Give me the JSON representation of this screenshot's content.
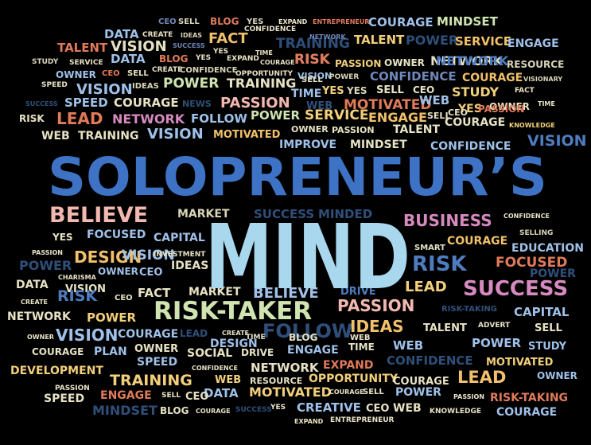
{
  "title": "SOLOPRENEUR’S",
  "subtitle": "MIND",
  "colors": {
    "background": "#000000",
    "title": "#3d72c4",
    "subtitle": "#a9d8ee"
  },
  "words": [
    {
      "text": "CEO",
      "color": "#6f88ba"
    },
    {
      "text": "SELL",
      "color": "#d9d4b8"
    },
    {
      "text": "BLOG",
      "color": "#e07a5a"
    },
    {
      "text": "YES",
      "color": "#d9d4b8"
    },
    {
      "text": "EXPAND",
      "color": "#e8e2c4"
    },
    {
      "text": "ENTREPRENEUR",
      "color": "#e07a5a"
    },
    {
      "text": "COURAGE",
      "color": "#9fc0e8"
    },
    {
      "text": "MINDSET",
      "color": "#cfe4b0"
    },
    {
      "text": "DATA",
      "color": "#9fc0e8"
    },
    {
      "text": "CREATE",
      "color": "#e8e2c4"
    },
    {
      "text": "IDEAS",
      "color": "#d9d4b8"
    },
    {
      "text": "FACT",
      "color": "#f0c06a"
    },
    {
      "text": "CONFIDENCE",
      "color": "#e8e2c4"
    },
    {
      "text": "TRAINING",
      "color": "#2f4f7a"
    },
    {
      "text": "NETWORK",
      "color": "#6f88ba"
    },
    {
      "text": "TALENT",
      "color": "#f2cf7a"
    },
    {
      "text": "POWER",
      "color": "#2f4f7a"
    },
    {
      "text": "SERVICE",
      "color": "#f0c06a"
    },
    {
      "text": "ENGAGE",
      "color": "#9fc0e8"
    },
    {
      "text": "TALENT",
      "color": "#e07a5a"
    },
    {
      "text": "VISION",
      "color": "#e8e2c4"
    },
    {
      "text": "SUCCESS",
      "color": "#6f88ba"
    },
    {
      "text": "RISK",
      "color": "#f2b8b0"
    },
    {
      "text": "TIME",
      "color": "#e8e2c4"
    },
    {
      "text": "YES",
      "color": "#e8e2c4"
    },
    {
      "text": "NETWORK",
      "color": "#e8e2c4"
    },
    {
      "text": "STUDY",
      "color": "#d9d4b8"
    },
    {
      "text": "SERVICE",
      "color": "#e8e2c4"
    },
    {
      "text": "DATA",
      "color": "#9fc0e8"
    },
    {
      "text": "BLOG",
      "color": "#e07a5a"
    },
    {
      "text": "YES",
      "color": "#e8e2c4"
    },
    {
      "text": "EXPAND",
      "color": "#e8e2c4"
    },
    {
      "text": "COURAGE",
      "color": "#e8e2c4"
    },
    {
      "text": "RISK",
      "color": "#e07a5a"
    },
    {
      "text": "PASSION",
      "color": "#f2cf7a"
    },
    {
      "text": "OWNER",
      "color": "#e8e2c4"
    },
    {
      "text": "NETWORK",
      "color": "#4f7cc0"
    },
    {
      "text": "RESOURCE",
      "color": "#d9d4b8"
    },
    {
      "text": "OWNER",
      "color": "#9fc0e8"
    },
    {
      "text": "CEO",
      "color": "#e07a5a"
    },
    {
      "text": "SELL",
      "color": "#e8e2c4"
    },
    {
      "text": "CREATE",
      "color": "#e8e2c4"
    },
    {
      "text": "CONFIDENCE",
      "color": "#d9d4b8"
    },
    {
      "text": "OPPORTUNITY",
      "color": "#e8e2c4"
    },
    {
      "text": "VISION",
      "color": "#9fc0e8"
    },
    {
      "text": "CONFIDENCE",
      "color": "#6f88ba"
    },
    {
      "text": "COURAGE",
      "color": "#f0c06a"
    },
    {
      "text": "VISIONARY",
      "color": "#d9d4b8"
    },
    {
      "text": "SPEED",
      "color": "#e8e2c4"
    },
    {
      "text": "VISION",
      "color": "#9fc0e8"
    },
    {
      "text": "IDEAS",
      "color": "#d9d4b8"
    },
    {
      "text": "POWER",
      "color": "#cfe4b0"
    },
    {
      "text": "TRAINING",
      "color": "#e8e2c4"
    },
    {
      "text": "SELL",
      "color": "#e8e2c4"
    },
    {
      "text": "POWER",
      "color": "#d9d4b8"
    },
    {
      "text": "YES",
      "color": "#d9d4b8"
    },
    {
      "text": "SELL",
      "color": "#e8e2c4"
    },
    {
      "text": "CEO",
      "color": "#e8e2c4"
    },
    {
      "text": "STUDY",
      "color": "#f2cf7a"
    },
    {
      "text": "FACT",
      "color": "#e8e2c4"
    },
    {
      "text": "SUCCESS",
      "color": "#2f4f7a"
    },
    {
      "text": "SPEED",
      "color": "#9fc0e8"
    },
    {
      "text": "COURAGE",
      "color": "#e8e2c4"
    },
    {
      "text": "NEWS",
      "color": "#2f4f7a"
    },
    {
      "text": "PASSION",
      "color": "#f2b8b0"
    },
    {
      "text": "TIME",
      "color": "#9fc0e8"
    },
    {
      "text": "YES",
      "color": "#f2cf7a"
    },
    {
      "text": "WEB",
      "color": "#2f4f7a"
    },
    {
      "text": "MOTIVATED",
      "color": "#e07a5a"
    },
    {
      "text": "WEB",
      "color": "#9fc0e8"
    },
    {
      "text": "YES",
      "color": "#f2cf7a"
    },
    {
      "text": "OWNER",
      "color": "#e8e2c4"
    },
    {
      "text": "TIME",
      "color": "#e8e2c4"
    },
    {
      "text": "RISK",
      "color": "#e8e2c4"
    },
    {
      "text": "LEAD",
      "color": "#e07a5a"
    },
    {
      "text": "NETWORK",
      "color": "#d68ac0"
    },
    {
      "text": "FOLLOW",
      "color": "#9fc0e8"
    },
    {
      "text": "POWER",
      "color": "#cfe4b0"
    },
    {
      "text": "SERVICE",
      "color": "#f2cf7a"
    },
    {
      "text": "ENGAGE",
      "color": "#f0c06a"
    },
    {
      "text": "SELL",
      "color": "#e8e2c4"
    },
    {
      "text": "CEO",
      "color": "#e8e2c4"
    },
    {
      "text": "COURAGE",
      "color": "#e8e2c4"
    },
    {
      "text": "PASSION",
      "color": "#e07a5a"
    },
    {
      "text": "WEB",
      "color": "#e8e2c4"
    },
    {
      "text": "TRAINING",
      "color": "#e8e2c4"
    },
    {
      "text": "VISION",
      "color": "#9fc0e8"
    },
    {
      "text": "MOTIVATED",
      "color": "#f0c06a"
    },
    {
      "text": "OWNER",
      "color": "#e8e2c4"
    },
    {
      "text": "PASSION",
      "color": "#e8e2c4"
    },
    {
      "text": "TALENT",
      "color": "#e8e2c4"
    },
    {
      "text": "KNOWLEDGE",
      "color": "#f2cf7a"
    },
    {
      "text": "VISION",
      "color": "#4f7cc0"
    },
    {
      "text": "IMPROVE",
      "color": "#9fc0e8"
    },
    {
      "text": "MINDSET",
      "color": "#e8e2c4"
    },
    {
      "text": "CONFIDENCE",
      "color": "#9fc0e8"
    },
    {
      "text": "BELIEVE",
      "color": "#f2b8b0"
    },
    {
      "text": "MARKET",
      "color": "#d9d4b8"
    },
    {
      "text": "SUCCESS",
      "color": "#2f4f7a"
    },
    {
      "text": "MINDED",
      "color": "#2f4f7a"
    },
    {
      "text": "BUSINESS",
      "color": "#d68ac0"
    },
    {
      "text": "CONFIDENCE",
      "color": "#e8e2c4"
    },
    {
      "text": "YES",
      "color": "#e8e2c4"
    },
    {
      "text": "FOCUSED",
      "color": "#9fc0e8"
    },
    {
      "text": "CAPITAL",
      "color": "#9fc0e8"
    },
    {
      "text": "COURAGE",
      "color": "#f0c06a"
    },
    {
      "text": "SELLING",
      "color": "#d9d4b8"
    },
    {
      "text": "PASSION",
      "color": "#e8e2c4"
    },
    {
      "text": "DESIGN",
      "color": "#f0c06a"
    },
    {
      "text": "VISION",
      "color": "#9fc0e8"
    },
    {
      "text": "INVESTMENT",
      "color": "#e8e2c4"
    },
    {
      "text": "SMART",
      "color": "#e8e2c4"
    },
    {
      "text": "EDUCATION",
      "color": "#9fc0e8"
    },
    {
      "text": "POWER",
      "color": "#2f4f7a"
    },
    {
      "text": "CHARISMA",
      "color": "#e8e2c4"
    },
    {
      "text": "OWNER",
      "color": "#9fc0e8"
    },
    {
      "text": "CEO",
      "color": "#9fc0e8"
    },
    {
      "text": "IDEAS",
      "color": "#e8e2c4"
    },
    {
      "text": "RISK",
      "color": "#4f7cc0"
    },
    {
      "text": "FOCUSED",
      "color": "#e07a5a"
    },
    {
      "text": "POWER",
      "color": "#2f4f7a"
    },
    {
      "text": "DATA",
      "color": "#e8e2c4"
    },
    {
      "text": "VISION",
      "color": "#e8e2c4"
    },
    {
      "text": "MARKET",
      "color": "#e8e2c4"
    },
    {
      "text": "BELIEVE",
      "color": "#9fc0e8"
    },
    {
      "text": "DRIVE",
      "color": "#4f7cc0"
    },
    {
      "text": "LEAD",
      "color": "#f2cf7a"
    },
    {
      "text": "SUCCESS",
      "color": "#d68ac0"
    },
    {
      "text": "RISK",
      "color": "#4f7cc0"
    },
    {
      "text": "CEO",
      "color": "#e8e2c4"
    },
    {
      "text": "FACT",
      "color": "#e8e2c4"
    },
    {
      "text": "CREATE",
      "color": "#e8e2c4"
    },
    {
      "text": "RISK-TAKER",
      "color": "#cfe4b0"
    },
    {
      "text": "PASSION",
      "color": "#f2b8b0"
    },
    {
      "text": "RISK-TAKING",
      "color": "#2f4f7a"
    },
    {
      "text": "CAPITAL",
      "color": "#9fc0e8"
    },
    {
      "text": "NETWORK",
      "color": "#e8e2c4"
    },
    {
      "text": "POWER",
      "color": "#f2cf7a"
    },
    {
      "text": "FOLLOW",
      "color": "#2f4f7a"
    },
    {
      "text": "IDEAS",
      "color": "#f0c06a"
    },
    {
      "text": "TALENT",
      "color": "#e8e2c4"
    },
    {
      "text": "ADVERT",
      "color": "#e8e2c4"
    },
    {
      "text": "SELL",
      "color": "#e8e2c4"
    },
    {
      "text": "OWNER",
      "color": "#e8e2c4"
    },
    {
      "text": "VISION",
      "color": "#9fc0e8"
    },
    {
      "text": "COURAGE",
      "color": "#9fc0e8"
    },
    {
      "text": "LEAD",
      "color": "#2f4f7a"
    },
    {
      "text": "CREATE",
      "color": "#e8e2c4"
    },
    {
      "text": "TIME",
      "color": "#e8e2c4"
    },
    {
      "text": "BLOG",
      "color": "#e8e2c4"
    },
    {
      "text": "WEB",
      "color": "#e8e2c4"
    },
    {
      "text": "DESIGN",
      "color": "#9fc0e8"
    },
    {
      "text": "POWER",
      "color": "#9fc0e8"
    },
    {
      "text": "STUDY",
      "color": "#9fc0e8"
    },
    {
      "text": "COURAGE",
      "color": "#e8e2c4"
    },
    {
      "text": "PLAN",
      "color": "#9fc0e8"
    },
    {
      "text": "OWNER",
      "color": "#e8e2c4"
    },
    {
      "text": "SOCIAL",
      "color": "#e8e2c4"
    },
    {
      "text": "DRIVE",
      "color": "#e8e2c4"
    },
    {
      "text": "ENGAGE",
      "color": "#9fc0e8"
    },
    {
      "text": "TIME",
      "color": "#e8e2c4"
    },
    {
      "text": "WEB",
      "color": "#9fc0e8"
    },
    {
      "text": "SPEED",
      "color": "#9fc0e8"
    },
    {
      "text": "CONFIDENCE",
      "color": "#2f4f7a"
    },
    {
      "text": "MOTIVATED",
      "color": "#f2cf7a"
    },
    {
      "text": "DEVELOPMENT",
      "color": "#f2cf7a"
    },
    {
      "text": "CONFIDENCE",
      "color": "#e8e2c4"
    },
    {
      "text": "NETWORK",
      "color": "#e8e2c4"
    },
    {
      "text": "EXPAND",
      "color": "#e07a5a"
    },
    {
      "text": "LEAD",
      "color": "#f0c06a"
    },
    {
      "text": "OWNER",
      "color": "#9fc0e8"
    },
    {
      "text": "TRAINING",
      "color": "#f2cf7a"
    },
    {
      "text": "WEB",
      "color": "#f2cf7a"
    },
    {
      "text": "RESOURCE",
      "color": "#e8e2c4"
    },
    {
      "text": "OPPORTUNITY",
      "color": "#f2cf7a"
    },
    {
      "text": "COURAGE",
      "color": "#e8e2c4"
    },
    {
      "text": "PASSION",
      "color": "#e8e2c4"
    },
    {
      "text": "ENGAGE",
      "color": "#e07a5a"
    },
    {
      "text": "DATA",
      "color": "#9fc0e8"
    },
    {
      "text": "MOTIVATED",
      "color": "#f2cf7a"
    },
    {
      "text": "POWER",
      "color": "#9fc0e8"
    },
    {
      "text": "RISK-TAKING",
      "color": "#e07a5a"
    },
    {
      "text": "SPEED",
      "color": "#e8e2c4"
    },
    {
      "text": "SELL",
      "color": "#e8e2c4"
    },
    {
      "text": "CEO",
      "color": "#e8e2c4"
    },
    {
      "text": "COURAGE",
      "color": "#e8e2c4"
    },
    {
      "text": "SELL",
      "color": "#e8e2c4"
    },
    {
      "text": "PASSION",
      "color": "#e8e2c4"
    },
    {
      "text": "MINDSET",
      "color": "#2f4f7a"
    },
    {
      "text": "BLOG",
      "color": "#e8e2c4"
    },
    {
      "text": "COURAGE",
      "color": "#e8e2c4"
    },
    {
      "text": "SUCCESS",
      "color": "#2f4f7a"
    },
    {
      "text": "YES",
      "color": "#e8e2c4"
    },
    {
      "text": "CREATIVE",
      "color": "#9fc0e8"
    },
    {
      "text": "CEO",
      "color": "#e8e2c4"
    },
    {
      "text": "WEB",
      "color": "#e8e2c4"
    },
    {
      "text": "KNOWLEDGE",
      "color": "#e8e2c4"
    },
    {
      "text": "COURAGE",
      "color": "#9fc0e8"
    },
    {
      "text": "EXPAND",
      "color": "#e8e2c4"
    },
    {
      "text": "ENTREPRENEUR",
      "color": "#e8e2c4"
    }
  ]
}
